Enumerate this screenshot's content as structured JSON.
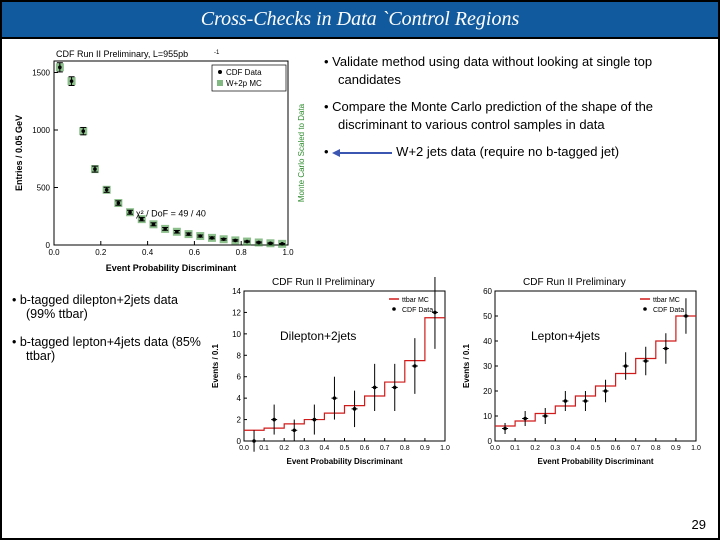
{
  "title": "Cross-Checks in Data `Control Regions",
  "bullets_upper": [
    "Validate method using data without looking at single top candidates",
    "Compare the Monte Carlo prediction of the shape of the discriminant to various control samples in data",
    "W+2 jets data (require no b-tagged jet)"
  ],
  "bullets_lower": [
    "b-tagged dilepton+2jets data (99% ttbar)",
    "b-tagged lepton+4jets data (85% ttbar)"
  ],
  "page_number": "29",
  "main_chart": {
    "type": "scatter-with-histogram",
    "title": "CDF Run II Preliminary, L=955pb",
    "title_fontsize": 9,
    "xlabel": "Event Probability Discriminant",
    "ylabel": "Entries / 0.05 GeV",
    "ylabel_right": "Monte Carlo Scaled to Data",
    "xlim": [
      0,
      1
    ],
    "ylim": [
      0,
      1600
    ],
    "ytick_step": 500,
    "legend": [
      "CDF Data",
      "W+2p MC"
    ],
    "legend_markers": [
      "data-point",
      "green-fill"
    ],
    "data_points": [
      {
        "x": 0.025,
        "y": 1545,
        "err": 40
      },
      {
        "x": 0.075,
        "y": 1425,
        "err": 38
      },
      {
        "x": 0.125,
        "y": 990,
        "err": 32
      },
      {
        "x": 0.175,
        "y": 660,
        "err": 26
      },
      {
        "x": 0.225,
        "y": 480,
        "err": 22
      },
      {
        "x": 0.275,
        "y": 365,
        "err": 19
      },
      {
        "x": 0.325,
        "y": 285,
        "err": 17
      },
      {
        "x": 0.375,
        "y": 225,
        "err": 15
      },
      {
        "x": 0.425,
        "y": 180,
        "err": 13
      },
      {
        "x": 0.475,
        "y": 140,
        "err": 12
      },
      {
        "x": 0.525,
        "y": 115,
        "err": 11
      },
      {
        "x": 0.575,
        "y": 95,
        "err": 10
      },
      {
        "x": 0.625,
        "y": 78,
        "err": 9
      },
      {
        "x": 0.675,
        "y": 62,
        "err": 8
      },
      {
        "x": 0.725,
        "y": 50,
        "err": 7
      },
      {
        "x": 0.775,
        "y": 40,
        "err": 6
      },
      {
        "x": 0.825,
        "y": 30,
        "err": 5
      },
      {
        "x": 0.875,
        "y": 22,
        "err": 5
      },
      {
        "x": 0.925,
        "y": 15,
        "err": 4
      },
      {
        "x": 0.975,
        "y": 10,
        "err": 3
      }
    ],
    "mc_color": "#2e8b2e",
    "data_color": "#000000",
    "chi2_label": "χ² / DoF = 49 / 40",
    "chi2_fontsize": 9
  },
  "small_chart_1": {
    "type": "scatter-with-errorbars",
    "caption_top": "CDF Run II Preliminary",
    "caption_center": "Dilepton+2jets",
    "xlabel": "Event Probability Discriminant",
    "ylabel": "Events / 0.1",
    "xlim": [
      0,
      1
    ],
    "ylim": [
      0,
      14
    ],
    "ytick_step": 2,
    "legend": [
      "ttbar MC",
      "CDF Data"
    ],
    "mc_color": "#d11a1a",
    "data_color": "#000000",
    "mc_points": [
      {
        "x": 0.05,
        "y": 1.0
      },
      {
        "x": 0.15,
        "y": 1.2
      },
      {
        "x": 0.25,
        "y": 1.6
      },
      {
        "x": 0.35,
        "y": 2.0
      },
      {
        "x": 0.45,
        "y": 2.6
      },
      {
        "x": 0.55,
        "y": 3.3
      },
      {
        "x": 0.65,
        "y": 4.2
      },
      {
        "x": 0.75,
        "y": 5.5
      },
      {
        "x": 0.85,
        "y": 7.5
      },
      {
        "x": 0.95,
        "y": 11.5
      }
    ],
    "data_points": [
      {
        "x": 0.05,
        "y": 0,
        "err": 1
      },
      {
        "x": 0.15,
        "y": 2,
        "err": 1.4
      },
      {
        "x": 0.25,
        "y": 1,
        "err": 1
      },
      {
        "x": 0.35,
        "y": 2,
        "err": 1.4
      },
      {
        "x": 0.45,
        "y": 4,
        "err": 2
      },
      {
        "x": 0.55,
        "y": 3,
        "err": 1.7
      },
      {
        "x": 0.65,
        "y": 5,
        "err": 2.2
      },
      {
        "x": 0.75,
        "y": 5,
        "err": 2.2
      },
      {
        "x": 0.85,
        "y": 7,
        "err": 2.6
      },
      {
        "x": 0.95,
        "y": 12,
        "err": 3.4
      }
    ]
  },
  "small_chart_2": {
    "type": "scatter-with-errorbars",
    "caption_top": "CDF Run II Preliminary",
    "caption_center": "Lepton+4jets",
    "xlabel": "Event Probability Discriminant",
    "ylabel": "Events / 0.1",
    "xlim": [
      0,
      1
    ],
    "ylim": [
      0,
      60
    ],
    "ytick_step": 10,
    "legend": [
      "ttbar MC",
      "CDF Data"
    ],
    "mc_color": "#d11a1a",
    "data_color": "#000000",
    "mc_points": [
      {
        "x": 0.05,
        "y": 6
      },
      {
        "x": 0.15,
        "y": 8
      },
      {
        "x": 0.25,
        "y": 11
      },
      {
        "x": 0.35,
        "y": 14
      },
      {
        "x": 0.45,
        "y": 18
      },
      {
        "x": 0.55,
        "y": 22
      },
      {
        "x": 0.65,
        "y": 27
      },
      {
        "x": 0.75,
        "y": 33
      },
      {
        "x": 0.85,
        "y": 40
      },
      {
        "x": 0.95,
        "y": 50
      }
    ],
    "data_points": [
      {
        "x": 0.05,
        "y": 5,
        "err": 2.2
      },
      {
        "x": 0.15,
        "y": 9,
        "err": 3
      },
      {
        "x": 0.25,
        "y": 10,
        "err": 3.2
      },
      {
        "x": 0.35,
        "y": 16,
        "err": 4
      },
      {
        "x": 0.45,
        "y": 16,
        "err": 4
      },
      {
        "x": 0.55,
        "y": 20,
        "err": 4.5
      },
      {
        "x": 0.65,
        "y": 30,
        "err": 5.5
      },
      {
        "x": 0.75,
        "y": 32,
        "err": 5.7
      },
      {
        "x": 0.85,
        "y": 37,
        "err": 6.1
      },
      {
        "x": 0.95,
        "y": 50,
        "err": 7.1
      }
    ]
  },
  "arrow_color": "#3a56b0"
}
